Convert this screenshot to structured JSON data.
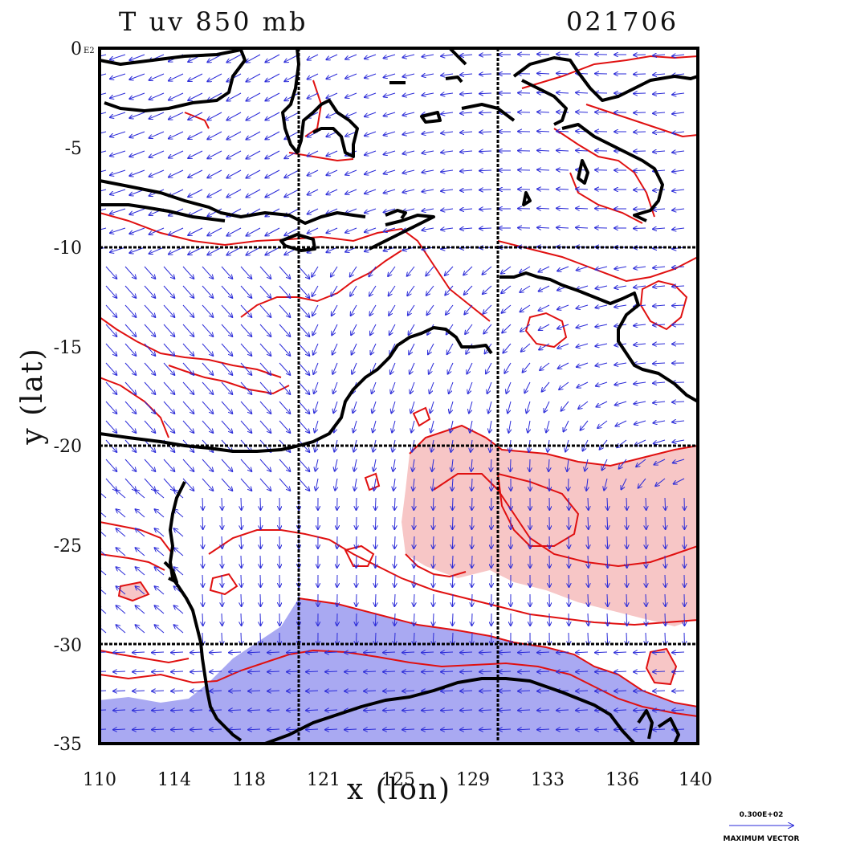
{
  "title": "T uv 850 mb",
  "date_code": "021706",
  "axes": {
    "xlabel": "x (lon)",
    "ylabel": "y (lat)",
    "x_ticks": [
      "110",
      "114",
      "118",
      "121",
      "125",
      "129",
      "133",
      "136",
      "140"
    ],
    "y_ticks": [
      "0",
      "-5",
      "-10",
      "-15",
      "-20",
      "-25",
      "-30",
      "-35"
    ],
    "y_top_exponent": "E2",
    "xlim": [
      110,
      140
    ],
    "ylim": [
      -35,
      0
    ]
  },
  "legend": {
    "scale_value": "0.300E+02",
    "label": "MAXIMUM VECTOR"
  },
  "colors": {
    "coastline": "#000000",
    "contour": "#e01010",
    "vector": "#2a2ad8",
    "warm_fill": "#f7c6c6",
    "cool_fill": "#a9a9f2",
    "grid": "#000000"
  }
}
